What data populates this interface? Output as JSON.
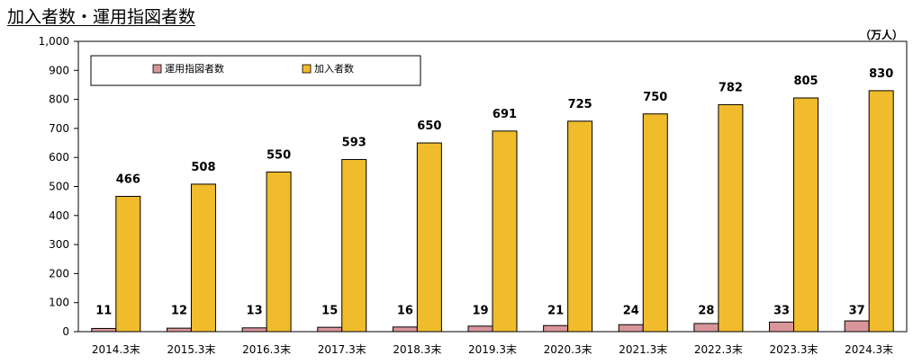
{
  "title": "加入者数・運用指図者数",
  "unit": "（万人）",
  "colors": {
    "managers": "#d9969a",
    "members": "#f0bc2c",
    "outline": "#000000"
  },
  "chart_data": {
    "type": "bar",
    "categories": [
      "2014.3末",
      "2015.3末",
      "2016.3末",
      "2017.3末",
      "2018.3末",
      "2019.3末",
      "2020.3末",
      "2021.3末",
      "2022.3末",
      "2023.3末",
      "2024.3末"
    ],
    "series": [
      {
        "name": "運用指図者数",
        "values": [
          11,
          12,
          13,
          15,
          16,
          19,
          21,
          24,
          28,
          33,
          37
        ]
      },
      {
        "name": "加入者数",
        "values": [
          466,
          508,
          550,
          593,
          650,
          691,
          725,
          750,
          782,
          805,
          830
        ]
      }
    ],
    "ylim": [
      0,
      1000
    ],
    "yticks": [
      0,
      100,
      200,
      300,
      400,
      500,
      600,
      700,
      800,
      900,
      1000
    ],
    "ytick_labels": [
      "0",
      "100",
      "200",
      "300",
      "400",
      "500",
      "600",
      "700",
      "800",
      "900",
      "1,000"
    ],
    "grid": false,
    "legend": "top-left"
  }
}
